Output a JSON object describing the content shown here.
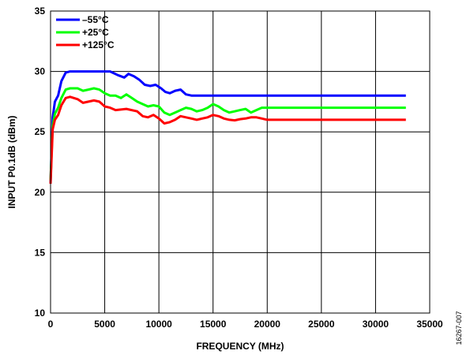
{
  "chart_data": {
    "type": "line",
    "title": "",
    "xlabel": "FREQUENCY (MHz)",
    "ylabel": "INPUT P0.1dB (dBm)",
    "xlim": [
      0,
      35000
    ],
    "ylim": [
      10,
      35
    ],
    "xticks": [
      0,
      5000,
      10000,
      15000,
      20000,
      25000,
      30000,
      35000
    ],
    "yticks": [
      10,
      15,
      20,
      25,
      30,
      35
    ],
    "grid": true,
    "legend_position": "top-left",
    "figure_id": "16267-007",
    "series": [
      {
        "name": "–55°C",
        "color": "#0000ff",
        "x": [
          0,
          200,
          400,
          700,
          1000,
          1400,
          1800,
          2500,
          3500,
          4500,
          5500,
          6200,
          6800,
          7200,
          7700,
          8200,
          8700,
          9200,
          9700,
          10200,
          10600,
          11000,
          11500,
          12000,
          12500,
          13000,
          13500,
          15000,
          20000,
          25000,
          30000,
          32800
        ],
        "y": [
          20.8,
          26.2,
          27.5,
          28.0,
          29.2,
          29.9,
          30.0,
          30.0,
          30.0,
          30.0,
          30.0,
          29.7,
          29.5,
          29.8,
          29.6,
          29.3,
          28.9,
          28.8,
          28.9,
          28.6,
          28.3,
          28.2,
          28.4,
          28.5,
          28.1,
          28.0,
          28.0,
          28.0,
          28.0,
          28.0,
          28.0,
          28.0
        ]
      },
      {
        "name": "+25°C",
        "color": "#00ff00",
        "x": [
          0,
          200,
          400,
          700,
          1000,
          1400,
          1800,
          2500,
          3000,
          3500,
          4000,
          4500,
          5000,
          5500,
          6000,
          6500,
          7000,
          7500,
          8000,
          8500,
          9000,
          9500,
          10000,
          10500,
          11000,
          11500,
          12000,
          12500,
          13000,
          13500,
          14000,
          14500,
          15000,
          15500,
          16000,
          16500,
          17000,
          17500,
          18000,
          18500,
          19000,
          19500,
          20000,
          25000,
          30000,
          32800
        ],
        "y": [
          21.0,
          25.5,
          26.5,
          27.0,
          27.8,
          28.5,
          28.6,
          28.6,
          28.4,
          28.5,
          28.6,
          28.5,
          28.2,
          28.0,
          28.0,
          27.8,
          28.1,
          27.8,
          27.5,
          27.3,
          27.1,
          27.2,
          27.1,
          26.6,
          26.4,
          26.6,
          26.8,
          27.0,
          26.9,
          26.7,
          26.8,
          27.0,
          27.3,
          27.1,
          26.8,
          26.6,
          26.7,
          26.8,
          26.9,
          26.6,
          26.8,
          27.0,
          27.0,
          27.0,
          27.0,
          27.0
        ]
      },
      {
        "name": "+125°C",
        "color": "#ff0000",
        "x": [
          0,
          200,
          400,
          700,
          1000,
          1400,
          1800,
          2500,
          3000,
          3500,
          4000,
          4500,
          5000,
          5500,
          6000,
          7000,
          8000,
          8500,
          9000,
          9500,
          10000,
          10500,
          11000,
          11500,
          12000,
          12500,
          13000,
          13500,
          14000,
          14500,
          15000,
          15500,
          16000,
          16500,
          17000,
          17500,
          18000,
          18500,
          19000,
          19500,
          20000,
          25000,
          30000,
          32800
        ],
        "y": [
          20.7,
          25.2,
          26.0,
          26.4,
          27.2,
          27.8,
          27.9,
          27.7,
          27.4,
          27.5,
          27.6,
          27.5,
          27.1,
          27.0,
          26.8,
          26.9,
          26.7,
          26.3,
          26.2,
          26.4,
          26.1,
          25.7,
          25.8,
          26.0,
          26.3,
          26.2,
          26.1,
          26.0,
          26.1,
          26.2,
          26.4,
          26.3,
          26.1,
          26.0,
          25.95,
          26.05,
          26.1,
          26.2,
          26.2,
          26.1,
          26.0,
          26.0,
          26.0,
          26.0
        ]
      }
    ]
  }
}
